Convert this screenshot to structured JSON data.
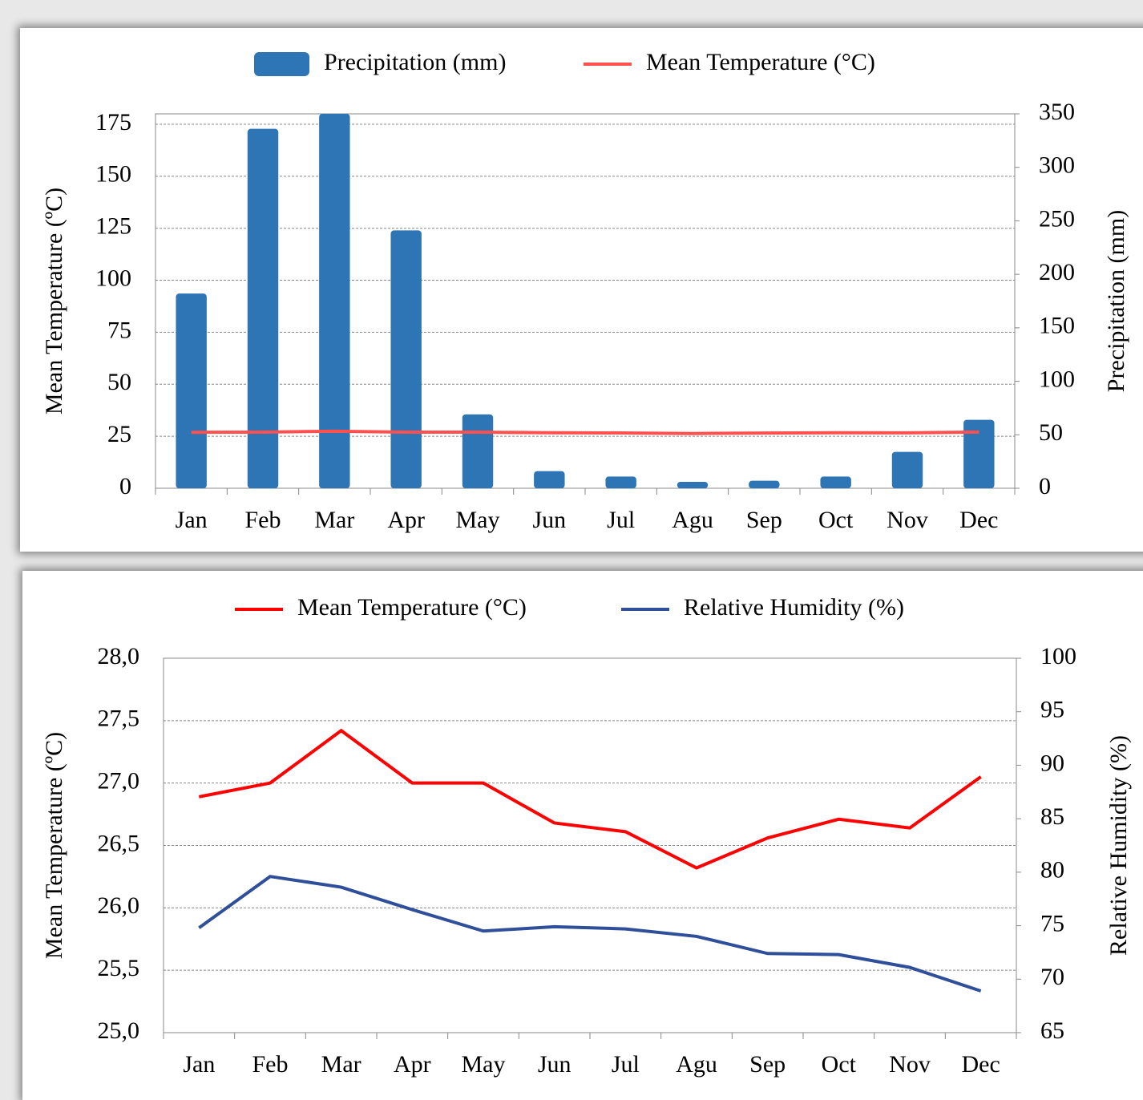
{
  "chart_data": [
    {
      "type": "combo",
      "categories": [
        "Jan",
        "Feb",
        "Mar",
        "Apr",
        "May",
        "Jun",
        "Jul",
        "Agu",
        "Sep",
        "Oct",
        "Nov",
        "Dec"
      ],
      "series": [
        {
          "name": "Precipitation (mm)",
          "type": "bar",
          "axis": "y2",
          "color": "#2e75b6",
          "values": [
            182,
            336,
            350,
            241,
            69,
            16,
            11,
            6,
            7,
            11,
            34,
            64
          ]
        },
        {
          "name": "Mean Temperature (°C)",
          "type": "line",
          "color": "#ff5050",
          "values": [
            26.89,
            27.0,
            27.42,
            27.0,
            27.0,
            26.68,
            26.61,
            26.32,
            26.56,
            26.71,
            26.64,
            27.05
          ]
        }
      ],
      "ylabel": "Mean Temperature (ºC)",
      "y2label": "Precipitation (mm)",
      "ylim": [
        0,
        180
      ],
      "yticks": [
        0,
        25,
        50,
        75,
        100,
        125,
        150,
        175
      ],
      "y2lim": [
        0,
        350
      ],
      "y2ticks": [
        0,
        50,
        100,
        150,
        200,
        250,
        300,
        350
      ],
      "grid": true,
      "legend": "top"
    },
    {
      "type": "line",
      "categories": [
        "Jan",
        "Feb",
        "Mar",
        "Apr",
        "May",
        "Jun",
        "Jul",
        "Agu",
        "Sep",
        "Oct",
        "Nov",
        "Dec"
      ],
      "series": [
        {
          "name": "Mean Temperature (°C)",
          "color": "#ff0000",
          "values": [
            26.89,
            27.0,
            27.42,
            27.0,
            27.0,
            26.68,
            26.61,
            26.32,
            26.56,
            26.71,
            26.64,
            27.05
          ]
        },
        {
          "name": "Relative Humidity (%)",
          "axis": "y2",
          "color": "#2f4f9a",
          "values": [
            74.8,
            79.6,
            78.6,
            76.5,
            74.5,
            74.9,
            74.7,
            74.0,
            72.4,
            72.3,
            71.1,
            68.9
          ]
        }
      ],
      "ylabel": "Mean Temperature (ºC)",
      "y2label": "Relative Humidity (%)",
      "ylim": [
        25,
        28
      ],
      "yticks": [
        {
          "value": 25,
          "label": "25,0"
        },
        {
          "value": 25.5,
          "label": "25,5"
        },
        {
          "value": 26,
          "label": "26,0"
        },
        {
          "value": 26.5,
          "label": "26,5"
        },
        {
          "value": 27,
          "label": "27,0"
        },
        {
          "value": 27.5,
          "label": "27,5"
        },
        {
          "value": 28,
          "label": "28,0"
        }
      ],
      "y2lim": [
        65,
        100
      ],
      "y2ticks": [
        65,
        70,
        75,
        80,
        85,
        90,
        95,
        100
      ],
      "grid": true,
      "legend": "top"
    }
  ]
}
